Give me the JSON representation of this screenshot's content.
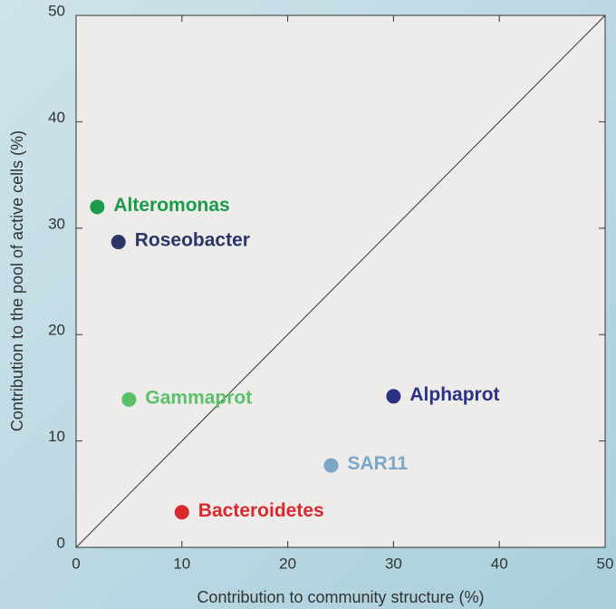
{
  "chart_data": {
    "type": "scatter",
    "x_label": "Contribution to community structure (%)",
    "y_label": "Contribution to the pool of active cells (%)",
    "xlim": [
      0,
      50
    ],
    "ylim": [
      0,
      50
    ],
    "xticks": [
      0,
      10,
      20,
      30,
      40,
      50
    ],
    "yticks": [
      0,
      10,
      20,
      30,
      40,
      50
    ],
    "diagonal": true,
    "series": [
      {
        "name": "Alteromonas",
        "color": "#1b9a4b",
        "x": [
          2
        ],
        "values": [
          32
        ]
      },
      {
        "name": "Roseobacter",
        "color": "#2b3566",
        "x": [
          4
        ],
        "values": [
          28.7
        ]
      },
      {
        "name": "Gammaprot",
        "color": "#5cbf6b",
        "x": [
          5
        ],
        "values": [
          13.9
        ]
      },
      {
        "name": "Alphaprot",
        "color": "#2c3184",
        "x": [
          30
        ],
        "values": [
          14.2
        ]
      },
      {
        "name": "SAR11",
        "color": "#7aa6c8",
        "x": [
          24.1
        ],
        "values": [
          7.7
        ]
      },
      {
        "name": "Bacteroidetes",
        "color": "#d8292c",
        "x": [
          10
        ],
        "values": [
          3.3
        ]
      }
    ]
  }
}
